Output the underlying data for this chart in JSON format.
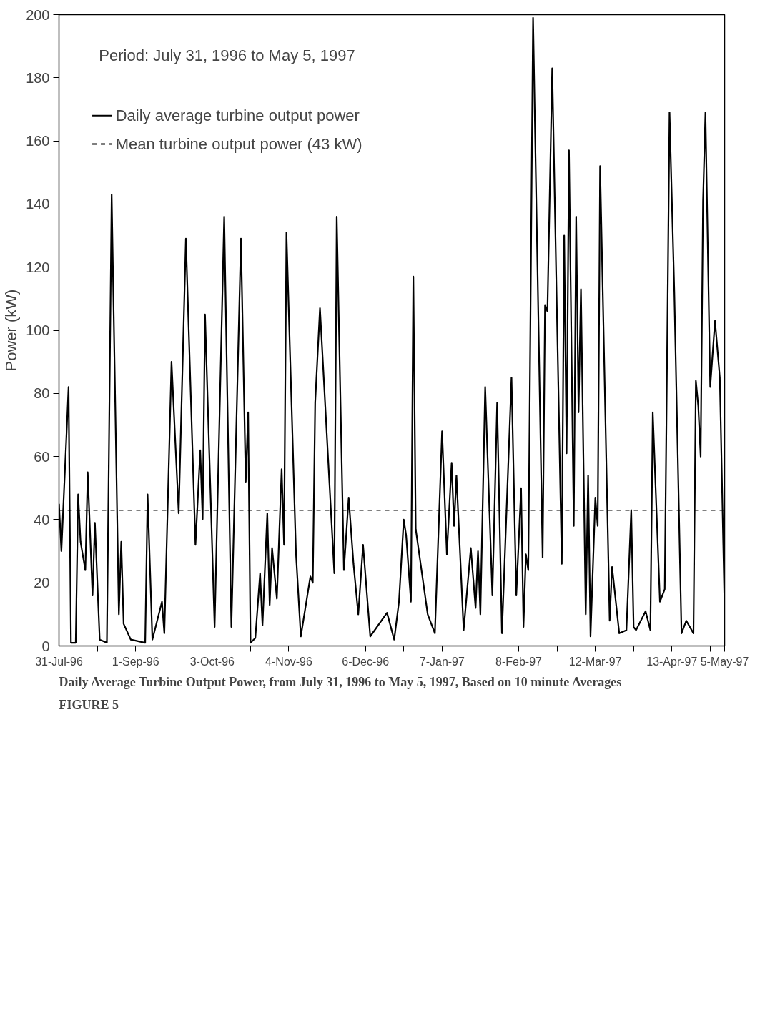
{
  "chart_data": {
    "type": "line",
    "title": "FIGURE 5",
    "subtitle": "Daily Average Turbine Output Power, from July 31, 1996 to May 5, 1997, Based on 10 minute Averages",
    "ylabel": "Power (kW)",
    "annotations": [
      "Period: July 31, 1996 to May 5, 1997"
    ],
    "x": [
      "1996-07-31",
      "1996-08-01",
      "1996-08-04",
      "1996-08-05",
      "1996-08-07",
      "1996-08-08",
      "1996-08-09",
      "1996-08-11",
      "1996-08-12",
      "1996-08-14",
      "1996-08-15",
      "1996-08-17",
      "1996-08-20",
      "1996-08-22",
      "1996-08-25",
      "1996-08-26",
      "1996-08-27",
      "1996-08-30",
      "1996-09-05",
      "1996-09-06",
      "1996-09-08",
      "1996-09-12",
      "1996-09-13",
      "1996-09-16",
      "1996-09-19",
      "1996-09-22",
      "1996-09-26",
      "1996-09-28",
      "1996-09-29",
      "1996-09-30",
      "1996-10-04",
      "1996-10-08",
      "1996-10-11",
      "1996-10-15",
      "1996-10-17",
      "1996-10-18",
      "1996-10-19",
      "1996-10-21",
      "1996-10-23",
      "1996-10-24",
      "1996-10-26",
      "1996-10-27",
      "1996-10-28",
      "1996-10-30",
      "1996-11-01",
      "1996-11-02",
      "1996-11-03",
      "1996-11-07",
      "1996-11-09",
      "1996-11-13",
      "1996-11-14",
      "1996-11-15",
      "1996-11-17",
      "1996-11-23",
      "1996-11-24",
      "1996-11-27",
      "1996-11-29",
      "1996-12-01",
      "1996-12-03",
      "1996-12-05",
      "1996-12-08",
      "1996-12-15",
      "1996-12-18",
      "1996-12-20",
      "1996-12-22",
      "1996-12-23",
      "1996-12-25",
      "1996-12-26",
      "1996-12-27",
      "1997-01-01",
      "1997-01-04",
      "1997-01-07",
      "1997-01-09",
      "1997-01-11",
      "1997-01-12",
      "1997-01-13",
      "1997-01-16",
      "1997-01-19",
      "1997-01-21",
      "1997-01-22",
      "1997-01-23",
      "1997-01-25",
      "1997-01-28",
      "1997-01-30",
      "1997-02-01",
      "1997-02-05",
      "1997-02-07",
      "1997-02-09",
      "1997-02-10",
      "1997-02-11",
      "1997-02-12",
      "1997-02-14",
      "1997-02-18",
      "1997-02-19",
      "1997-02-20",
      "1997-02-22",
      "1997-02-26",
      "1997-02-27",
      "1997-02-28",
      "1997-03-01",
      "1997-03-03",
      "1997-03-04",
      "1997-03-05",
      "1997-03-06",
      "1997-03-08",
      "1997-03-09",
      "1997-03-10",
      "1997-03-12",
      "1997-03-13",
      "1997-03-14",
      "1997-03-18",
      "1997-03-19",
      "1997-03-22",
      "1997-03-25",
      "1997-03-27",
      "1997-03-28",
      "1997-03-29",
      "1997-04-02",
      "1997-04-04",
      "1997-04-05",
      "1997-04-08",
      "1997-04-10",
      "1997-04-12",
      "1997-04-14",
      "1997-04-17",
      "1997-04-19",
      "1997-04-22",
      "1997-04-23",
      "1997-04-24",
      "1997-04-25",
      "1997-04-26",
      "1997-04-27",
      "1997-04-29",
      "1997-05-01",
      "1997-05-03",
      "1997-05-05"
    ],
    "series": [
      {
        "name": "Daily average turbine output power",
        "color": "#000000",
        "values": [
          45,
          30,
          82,
          1,
          1,
          48,
          33,
          24,
          55,
          16,
          39,
          2,
          1,
          143,
          10,
          33,
          7,
          2,
          1,
          48,
          2,
          14,
          4,
          90,
          42,
          129,
          32,
          62,
          40,
          105,
          6,
          136,
          6,
          129,
          52,
          74,
          1,
          2.5,
          23,
          6.5,
          42,
          13,
          31,
          15,
          56,
          32,
          131,
          29,
          3,
          22,
          20,
          77,
          107,
          23,
          136,
          24,
          47,
          26,
          10,
          32,
          3,
          10.5,
          2,
          14,
          40,
          35,
          14,
          117,
          37,
          10,
          4,
          68,
          29,
          58,
          38,
          54,
          5,
          31,
          12,
          30,
          10,
          82,
          16,
          77,
          4,
          85,
          16,
          50,
          6,
          29,
          24,
          199,
          28,
          108,
          106,
          183,
          26,
          130,
          61,
          157,
          38,
          136,
          74,
          113,
          10,
          54,
          3,
          47,
          38,
          152,
          8,
          25,
          4,
          5,
          43,
          6,
          5,
          11,
          5,
          74,
          14,
          18,
          169,
          112,
          4,
          8,
          4,
          84,
          76,
          60,
          141,
          169,
          82,
          103,
          85,
          12
        ]
      }
    ],
    "xlim": [
      "1996-07-31",
      "1997-05-05"
    ],
    "xticks": [
      {
        "value": "1996-07-31",
        "label": "31-Jul-96"
      },
      {
        "value": "1996-08-16",
        "label": null
      },
      {
        "value": "1996-09-01",
        "label": "1-Sep-96"
      },
      {
        "value": "1996-09-17",
        "label": null
      },
      {
        "value": "1996-10-03",
        "label": "3-Oct-96"
      },
      {
        "value": "1996-10-19",
        "label": null
      },
      {
        "value": "1996-11-04",
        "label": "4-Nov-96"
      },
      {
        "value": "1996-11-20",
        "label": null
      },
      {
        "value": "1996-12-06",
        "label": "6-Dec-96"
      },
      {
        "value": "1996-12-22",
        "label": null
      },
      {
        "value": "1997-01-07",
        "label": "7-Jan-97"
      },
      {
        "value": "1997-01-23",
        "label": null
      },
      {
        "value": "1997-02-08",
        "label": "8-Feb-97"
      },
      {
        "value": "1997-02-24",
        "label": null
      },
      {
        "value": "1997-03-12",
        "label": "12-Mar-97"
      },
      {
        "value": "1997-03-28",
        "label": null
      },
      {
        "value": "1997-04-13",
        "label": "13-Apr-97"
      },
      {
        "value": "1997-04-29",
        "label": null
      },
      {
        "value": "1997-05-05",
        "label": "5-May-97"
      }
    ],
    "ylim": [
      0,
      200
    ],
    "yticks": [
      0,
      20,
      40,
      60,
      80,
      100,
      120,
      140,
      160,
      180,
      200
    ],
    "ref_lines": [
      {
        "axis": "y",
        "value": 43,
        "label": "Mean turbine output power (43 kW)",
        "color": "#000000",
        "line_style": "dashed"
      }
    ],
    "legend": "top left",
    "grid": false,
    "marker": "none",
    "line_style": "solid"
  }
}
